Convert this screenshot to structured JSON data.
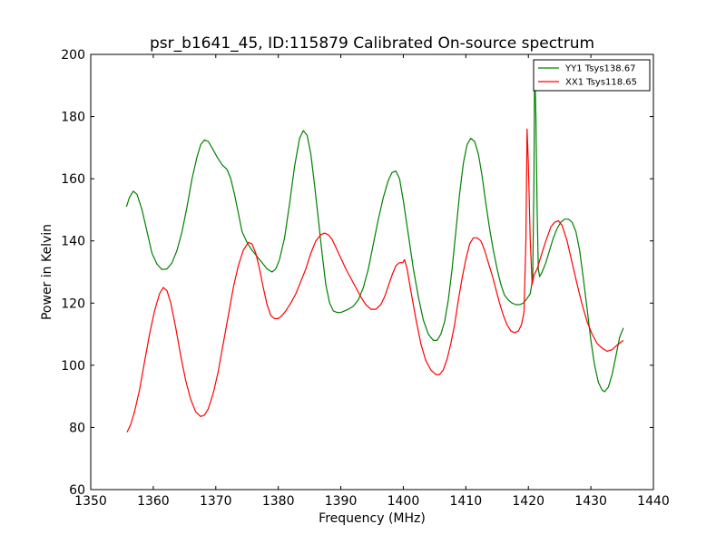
{
  "chart_data": {
    "type": "line",
    "title": "psr_b1641_45, ID:115879 Calibrated On-source spectrum",
    "xlabel": "Frequency (MHz)",
    "ylabel": "Power in Kelvin",
    "xlim": [
      1350,
      1440
    ],
    "ylim": [
      60,
      200
    ],
    "xticks": [
      1350,
      1360,
      1370,
      1380,
      1390,
      1400,
      1410,
      1420,
      1430,
      1440
    ],
    "yticks": [
      60,
      80,
      100,
      120,
      140,
      160,
      180,
      200
    ],
    "grid": false,
    "legend_position": "top-right",
    "series": [
      {
        "name": "YY1 Tsys138.67",
        "color": "#008000",
        "points": [
          [
            1355.7,
            151
          ],
          [
            1356.2,
            154
          ],
          [
            1356.8,
            156
          ],
          [
            1357.4,
            155
          ],
          [
            1358.2,
            150
          ],
          [
            1359.0,
            143
          ],
          [
            1359.8,
            136
          ],
          [
            1360.6,
            132.5
          ],
          [
            1361.4,
            130.8
          ],
          [
            1362.2,
            131
          ],
          [
            1363.0,
            133
          ],
          [
            1363.8,
            137
          ],
          [
            1364.6,
            143
          ],
          [
            1365.4,
            151
          ],
          [
            1366.2,
            160
          ],
          [
            1367.0,
            167
          ],
          [
            1367.6,
            171
          ],
          [
            1368.2,
            172.5
          ],
          [
            1368.8,
            172
          ],
          [
            1369.4,
            170
          ],
          [
            1370.2,
            167
          ],
          [
            1371.0,
            164.5
          ],
          [
            1371.8,
            163
          ],
          [
            1372.4,
            160
          ],
          [
            1373.0,
            155
          ],
          [
            1373.6,
            149
          ],
          [
            1374.2,
            143
          ],
          [
            1375.0,
            139.5
          ],
          [
            1375.8,
            137
          ],
          [
            1376.6,
            135
          ],
          [
            1377.4,
            133
          ],
          [
            1378.2,
            131
          ],
          [
            1379.0,
            130
          ],
          [
            1379.6,
            131
          ],
          [
            1380.2,
            134
          ],
          [
            1381.0,
            141
          ],
          [
            1381.8,
            152
          ],
          [
            1382.6,
            164
          ],
          [
            1383.4,
            173
          ],
          [
            1384.0,
            175.5
          ],
          [
            1384.6,
            174
          ],
          [
            1385.2,
            168
          ],
          [
            1385.8,
            158
          ],
          [
            1386.4,
            147
          ],
          [
            1387.0,
            136
          ],
          [
            1387.6,
            126
          ],
          [
            1388.2,
            120
          ],
          [
            1388.8,
            117.5
          ],
          [
            1389.4,
            117
          ],
          [
            1390.0,
            117
          ],
          [
            1390.6,
            117.5
          ],
          [
            1391.2,
            118
          ],
          [
            1392.0,
            119
          ],
          [
            1392.8,
            121
          ],
          [
            1393.6,
            125
          ],
          [
            1394.4,
            131
          ],
          [
            1395.2,
            139
          ],
          [
            1396.0,
            147
          ],
          [
            1396.8,
            154
          ],
          [
            1397.6,
            159.5
          ],
          [
            1398.2,
            162
          ],
          [
            1398.8,
            162.5
          ],
          [
            1399.4,
            160
          ],
          [
            1400.0,
            153
          ],
          [
            1400.8,
            142
          ],
          [
            1401.6,
            131
          ],
          [
            1402.4,
            122
          ],
          [
            1403.2,
            114.5
          ],
          [
            1404.0,
            110
          ],
          [
            1404.8,
            108
          ],
          [
            1405.4,
            108
          ],
          [
            1406.0,
            110
          ],
          [
            1406.6,
            114
          ],
          [
            1407.2,
            121
          ],
          [
            1407.8,
            131
          ],
          [
            1408.4,
            143
          ],
          [
            1409.0,
            155
          ],
          [
            1409.6,
            165
          ],
          [
            1410.2,
            171
          ],
          [
            1410.8,
            173
          ],
          [
            1411.4,
            172
          ],
          [
            1412.0,
            168
          ],
          [
            1412.6,
            161
          ],
          [
            1413.2,
            152
          ],
          [
            1413.8,
            144
          ],
          [
            1414.4,
            137
          ],
          [
            1415.0,
            131
          ],
          [
            1415.6,
            126
          ],
          [
            1416.2,
            122.5
          ],
          [
            1416.8,
            121
          ],
          [
            1417.4,
            120
          ],
          [
            1418.0,
            119.5
          ],
          [
            1418.6,
            119.5
          ],
          [
            1419.2,
            120
          ],
          [
            1419.8,
            121.5
          ],
          [
            1420.3,
            123
          ],
          [
            1420.7,
            128
          ],
          [
            1420.9,
            160
          ],
          [
            1421.0,
            198
          ],
          [
            1421.2,
            180
          ],
          [
            1421.4,
            150
          ],
          [
            1421.6,
            131
          ],
          [
            1421.8,
            128.5
          ],
          [
            1422.2,
            130
          ],
          [
            1422.8,
            133
          ],
          [
            1423.4,
            137
          ],
          [
            1424.0,
            141
          ],
          [
            1424.6,
            144
          ],
          [
            1425.2,
            146
          ],
          [
            1425.8,
            147
          ],
          [
            1426.4,
            147
          ],
          [
            1427.0,
            146
          ],
          [
            1427.6,
            143
          ],
          [
            1428.2,
            137
          ],
          [
            1428.8,
            128
          ],
          [
            1429.4,
            118
          ],
          [
            1430.0,
            108
          ],
          [
            1430.6,
            100
          ],
          [
            1431.2,
            94.5
          ],
          [
            1431.8,
            92
          ],
          [
            1432.2,
            91.5
          ],
          [
            1432.8,
            93
          ],
          [
            1433.4,
            97
          ],
          [
            1434.0,
            103
          ],
          [
            1434.6,
            109
          ],
          [
            1435.2,
            112
          ]
        ]
      },
      {
        "name": "XX1 Tsys118.65",
        "color": "#ff0000",
        "points": [
          [
            1355.8,
            78.5
          ],
          [
            1356.4,
            81
          ],
          [
            1357.0,
            85
          ],
          [
            1357.8,
            92
          ],
          [
            1358.6,
            101
          ],
          [
            1359.4,
            110
          ],
          [
            1360.2,
            117.5
          ],
          [
            1361.0,
            123
          ],
          [
            1361.6,
            125
          ],
          [
            1362.2,
            124
          ],
          [
            1362.8,
            120
          ],
          [
            1363.6,
            112
          ],
          [
            1364.4,
            103
          ],
          [
            1365.2,
            95
          ],
          [
            1366.0,
            89
          ],
          [
            1366.8,
            85
          ],
          [
            1367.6,
            83.5
          ],
          [
            1368.2,
            84
          ],
          [
            1368.8,
            86
          ],
          [
            1369.6,
            91
          ],
          [
            1370.4,
            98
          ],
          [
            1371.2,
            107
          ],
          [
            1372.0,
            116
          ],
          [
            1372.8,
            125
          ],
          [
            1373.6,
            132
          ],
          [
            1374.4,
            137
          ],
          [
            1375.2,
            139.5
          ],
          [
            1375.8,
            139
          ],
          [
            1376.4,
            136
          ],
          [
            1377.0,
            131
          ],
          [
            1377.6,
            125
          ],
          [
            1378.2,
            119.5
          ],
          [
            1378.8,
            116
          ],
          [
            1379.4,
            115
          ],
          [
            1380.0,
            115
          ],
          [
            1380.6,
            116
          ],
          [
            1381.2,
            117.5
          ],
          [
            1382.0,
            120
          ],
          [
            1382.8,
            123
          ],
          [
            1383.6,
            127
          ],
          [
            1384.4,
            131
          ],
          [
            1385.2,
            136
          ],
          [
            1386.0,
            140
          ],
          [
            1386.8,
            142
          ],
          [
            1387.4,
            142.5
          ],
          [
            1388.0,
            142
          ],
          [
            1388.6,
            140.5
          ],
          [
            1389.2,
            138
          ],
          [
            1390.0,
            134.5
          ],
          [
            1390.8,
            131
          ],
          [
            1391.6,
            128
          ],
          [
            1392.4,
            125
          ],
          [
            1393.2,
            122
          ],
          [
            1394.0,
            119.5
          ],
          [
            1394.8,
            118
          ],
          [
            1395.6,
            118
          ],
          [
            1396.4,
            119.5
          ],
          [
            1397.0,
            122
          ],
          [
            1397.6,
            125.5
          ],
          [
            1398.2,
            129
          ],
          [
            1398.8,
            132
          ],
          [
            1399.4,
            133
          ],
          [
            1399.9,
            133
          ],
          [
            1400.2,
            134
          ],
          [
            1400.6,
            131
          ],
          [
            1401.2,
            124
          ],
          [
            1402.0,
            115
          ],
          [
            1402.8,
            107
          ],
          [
            1403.6,
            101.5
          ],
          [
            1404.4,
            98.5
          ],
          [
            1405.2,
            97
          ],
          [
            1405.8,
            97
          ],
          [
            1406.4,
            98.5
          ],
          [
            1407.0,
            102
          ],
          [
            1407.6,
            107
          ],
          [
            1408.2,
            113
          ],
          [
            1408.8,
            121
          ],
          [
            1409.4,
            128
          ],
          [
            1410.0,
            134
          ],
          [
            1410.6,
            139
          ],
          [
            1411.2,
            141
          ],
          [
            1411.8,
            141
          ],
          [
            1412.4,
            140
          ],
          [
            1413.0,
            137
          ],
          [
            1413.6,
            133
          ],
          [
            1414.2,
            129
          ],
          [
            1414.8,
            124.5
          ],
          [
            1415.4,
            120
          ],
          [
            1416.0,
            116
          ],
          [
            1416.6,
            113
          ],
          [
            1417.2,
            111
          ],
          [
            1417.8,
            110.5
          ],
          [
            1418.4,
            111
          ],
          [
            1418.9,
            113
          ],
          [
            1419.3,
            117
          ],
          [
            1419.6,
            140
          ],
          [
            1419.8,
            176
          ],
          [
            1420.0,
            165
          ],
          [
            1420.3,
            140
          ],
          [
            1420.6,
            126
          ],
          [
            1420.9,
            129
          ],
          [
            1421.4,
            131
          ],
          [
            1422.0,
            135
          ],
          [
            1422.8,
            140
          ],
          [
            1423.6,
            144.5
          ],
          [
            1424.2,
            146
          ],
          [
            1424.8,
            146.5
          ],
          [
            1425.4,
            145
          ],
          [
            1426.2,
            140
          ],
          [
            1427.0,
            133
          ],
          [
            1427.8,
            126
          ],
          [
            1428.6,
            119.5
          ],
          [
            1429.4,
            114
          ],
          [
            1430.2,
            110
          ],
          [
            1431.0,
            107
          ],
          [
            1431.8,
            105.5
          ],
          [
            1432.6,
            104.5
          ],
          [
            1433.4,
            105
          ],
          [
            1434.2,
            106.5
          ],
          [
            1435.2,
            108
          ]
        ]
      }
    ]
  }
}
